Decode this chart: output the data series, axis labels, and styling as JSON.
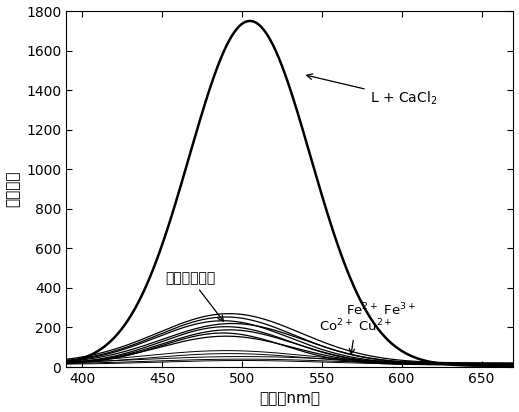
{
  "title": "",
  "xlabel": "波长（nm）",
  "ylabel": "荧光强度",
  "xlim": [
    390,
    670
  ],
  "ylim": [
    0,
    1800
  ],
  "yticks": [
    0,
    200,
    400,
    600,
    800,
    1000,
    1200,
    1400,
    1600,
    1800
  ],
  "xticks": [
    400,
    450,
    500,
    550,
    600,
    650
  ],
  "cacl2_label": "L + CaCl$_2$",
  "other_label": "其它金属离子",
  "fe_label": "Fe$^{2+}$ Fe$^{3+}$",
  "co_cu_label": "Co$^{2+}$ Cu$^{2+}$",
  "background_color": "#ffffff",
  "figsize": [
    5.19,
    4.12
  ],
  "dpi": 100
}
